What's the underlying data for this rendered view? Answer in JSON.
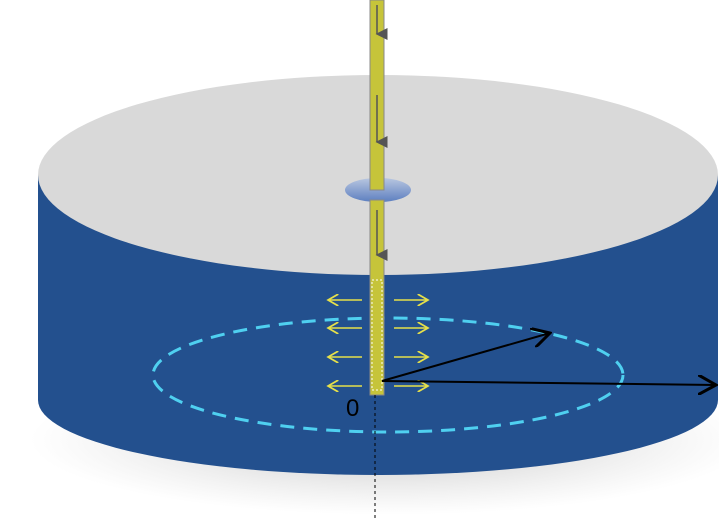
{
  "labels": {
    "origin": "0"
  }
}
